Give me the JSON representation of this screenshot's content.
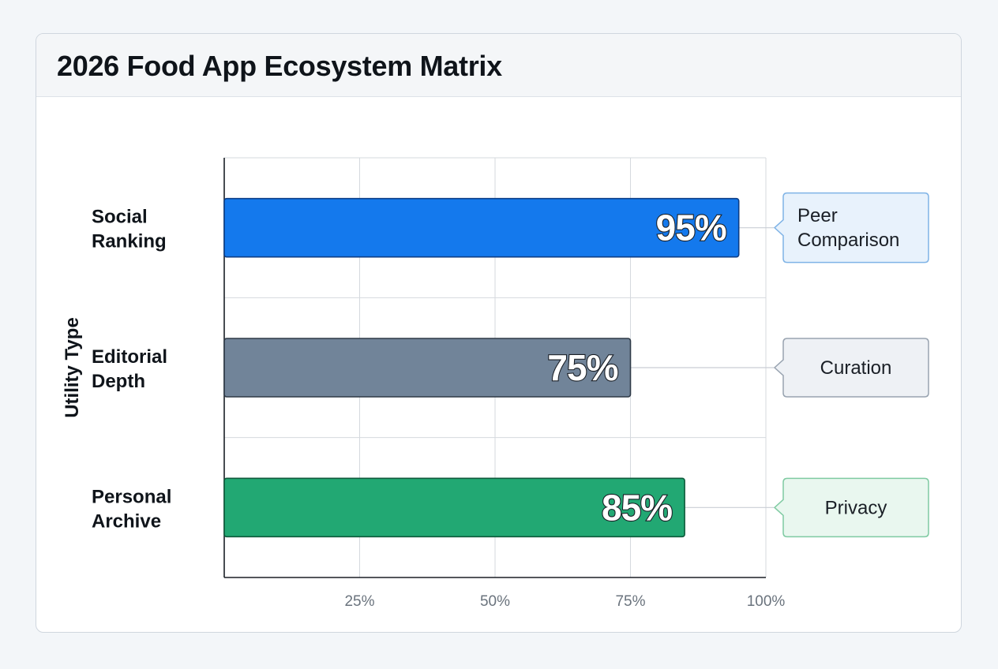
{
  "title": "2026 Food App Ecosystem Matrix",
  "chart_data": {
    "type": "bar",
    "orientation": "horizontal",
    "title": "2026 Food App Ecosystem Matrix",
    "ylabel": "Utility Type",
    "xlabel": "",
    "xlim": [
      0,
      100
    ],
    "x_ticks": [
      "25%",
      "50%",
      "75%",
      "100%"
    ],
    "x_tick_values": [
      25,
      50,
      75,
      100
    ],
    "grid": true,
    "categories": [
      {
        "lines": [
          "Social",
          "Ranking"
        ]
      },
      {
        "lines": [
          "Editorial",
          "Depth"
        ]
      },
      {
        "lines": [
          "Personal",
          "Archive"
        ]
      }
    ],
    "values": [
      95,
      75,
      85
    ],
    "data_labels": [
      "95%",
      "75%",
      "85%"
    ],
    "annotations": [
      {
        "lines": [
          "Peer",
          "Comparison"
        ],
        "align": "left"
      },
      {
        "lines": [
          "Curation"
        ],
        "align": "center"
      },
      {
        "lines": [
          "Privacy"
        ],
        "align": "center"
      }
    ],
    "colors": {
      "bars": [
        "#1479ed",
        "#718499",
        "#22a873"
      ],
      "bar_borders": [
        "#0d3e86",
        "#2f3a47",
        "#0e5a3b"
      ],
      "callout_fill": [
        "#e8f2fc",
        "#eef1f5",
        "#e9f7ef"
      ],
      "callout_border": [
        "#7fb3e6",
        "#98a3b0",
        "#7fcaa2"
      ]
    }
  }
}
